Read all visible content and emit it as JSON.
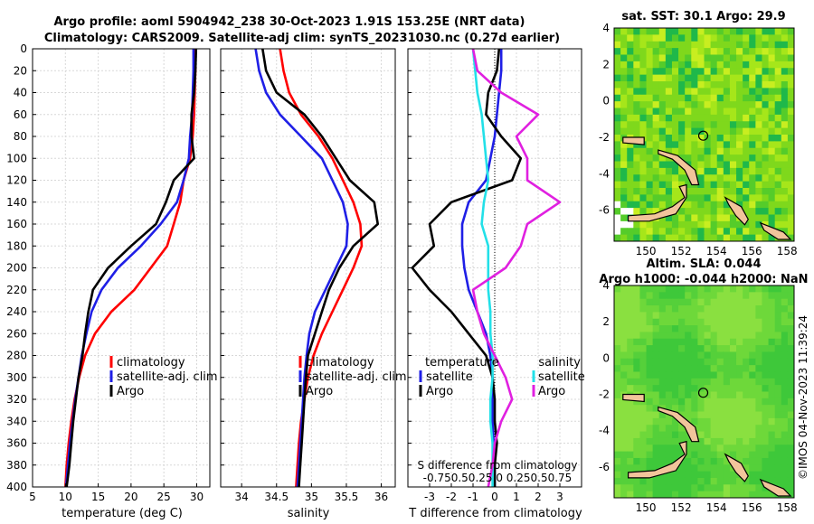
{
  "header": {
    "title_line1": "Argo profile: aoml 5904942_238 30-Oct-2023 1.91S 153.25E (NRT data)",
    "title_line2": "Climatology: CARS2009. Satellite-adj clim: synTS_20231030.nc (0.27d earlier)"
  },
  "colors": {
    "climatology": "#ff0000",
    "satellite": "#1f1fe6",
    "argo": "#000000",
    "sat_salinity": "#22e0e8",
    "argo_salinity": "#e020e0",
    "land": "#f2c49b"
  },
  "depth_ticks": [
    "0",
    "20",
    "40",
    "60",
    "80",
    "100",
    "120",
    "140",
    "160",
    "180",
    "200",
    "220",
    "240",
    "260",
    "280",
    "300",
    "320",
    "340",
    "360",
    "380",
    "400"
  ],
  "chart_data": [
    {
      "type": "line",
      "panel": "temperature",
      "xlabel": "temperature (deg C)",
      "ylabel": "depth",
      "xlim": [
        5,
        32
      ],
      "ylim": [
        400,
        0
      ],
      "y_inverted": true,
      "xticks": [
        "5",
        "10",
        "15",
        "20",
        "25",
        "30"
      ],
      "grid": true,
      "legend": [
        "climatology",
        "satellite-adj. clim",
        "Argo"
      ],
      "series": [
        {
          "name": "climatology",
          "color": "#ff0000",
          "x": [
            29.8,
            29.8,
            29.7,
            29.6,
            29.4,
            29.0,
            28.0,
            27.5,
            26.5,
            25.5,
            23.0,
            20.5,
            17.0,
            14.5,
            13.0,
            12.1,
            11.4,
            10.9,
            10.5,
            10.2,
            10.0
          ],
          "y": [
            0,
            20,
            40,
            60,
            80,
            100,
            120,
            140,
            160,
            180,
            200,
            220,
            240,
            260,
            280,
            300,
            320,
            340,
            360,
            380,
            400
          ]
        },
        {
          "name": "satellite-adj. clim",
          "color": "#1f1fe6",
          "x": [
            29.5,
            29.5,
            29.4,
            29.3,
            29.0,
            28.8,
            28.0,
            27.0,
            24.5,
            21.5,
            18.0,
            15.5,
            14.0,
            13.2,
            12.5,
            12.0,
            11.5,
            11.1,
            10.7,
            10.4,
            10.1
          ],
          "y": [
            0,
            20,
            40,
            60,
            80,
            100,
            120,
            140,
            160,
            180,
            200,
            220,
            240,
            260,
            280,
            300,
            320,
            340,
            360,
            380,
            400
          ]
        },
        {
          "name": "Argo",
          "color": "#000000",
          "x": [
            29.9,
            29.8,
            29.6,
            29.2,
            29.2,
            29.6,
            26.5,
            25.3,
            23.8,
            20.0,
            16.5,
            14.2,
            13.5,
            13.0,
            12.6,
            12.0,
            11.6,
            11.2,
            10.9,
            10.6,
            10.2
          ],
          "y": [
            0,
            20,
            40,
            60,
            80,
            100,
            120,
            140,
            160,
            180,
            200,
            220,
            240,
            260,
            280,
            300,
            320,
            340,
            360,
            380,
            400
          ]
        }
      ]
    },
    {
      "type": "line",
      "panel": "salinity",
      "xlabel": "salinity",
      "xlim": [
        33.7,
        36.2
      ],
      "ylim": [
        400,
        0
      ],
      "y_inverted": true,
      "xticks": [
        "34",
        "34.5",
        "35",
        "35.5",
        "36"
      ],
      "grid": true,
      "legend": [
        "climatology",
        "satellite-adj. clim",
        "Argo"
      ],
      "series": [
        {
          "name": "climatology",
          "color": "#ff0000",
          "x": [
            34.55,
            34.6,
            34.68,
            34.85,
            35.1,
            35.3,
            35.45,
            35.6,
            35.7,
            35.72,
            35.6,
            35.45,
            35.3,
            35.15,
            35.03,
            34.95,
            34.9,
            34.85,
            34.82,
            34.8,
            34.78
          ],
          "y": [
            0,
            20,
            40,
            60,
            80,
            100,
            120,
            140,
            160,
            180,
            200,
            220,
            240,
            260,
            280,
            300,
            320,
            340,
            360,
            380,
            400
          ]
        },
        {
          "name": "satellite-adj. clim",
          "color": "#1f1fe6",
          "x": [
            34.2,
            34.25,
            34.35,
            34.55,
            34.85,
            35.15,
            35.3,
            35.45,
            35.52,
            35.5,
            35.35,
            35.2,
            35.05,
            34.97,
            34.93,
            34.9,
            34.88,
            34.86,
            34.84,
            34.82,
            34.8
          ],
          "y": [
            0,
            20,
            40,
            60,
            80,
            100,
            120,
            140,
            160,
            180,
            200,
            220,
            240,
            260,
            280,
            300,
            320,
            340,
            360,
            380,
            400
          ]
        },
        {
          "name": "Argo",
          "color": "#000000",
          "x": [
            34.3,
            34.35,
            34.5,
            34.9,
            35.15,
            35.35,
            35.55,
            35.9,
            35.95,
            35.6,
            35.4,
            35.25,
            35.15,
            35.05,
            34.95,
            34.92,
            34.9,
            34.88,
            34.86,
            34.84,
            34.82
          ],
          "y": [
            0,
            20,
            40,
            60,
            80,
            100,
            120,
            140,
            160,
            180,
            200,
            220,
            240,
            260,
            280,
            300,
            320,
            340,
            360,
            380,
            400
          ]
        }
      ]
    },
    {
      "type": "line",
      "panel": "difference",
      "xlabel": "T difference from climatology",
      "top_label": "S difference from climatology",
      "top_ticks": "-0.750.50.25 0  0.250.50.75",
      "xlim": [
        -4,
        4
      ],
      "ylim": [
        400,
        0
      ],
      "y_inverted": true,
      "xticks": [
        "-3",
        "-2",
        "-1",
        "0",
        "1",
        "2",
        "3"
      ],
      "grid": true,
      "legend_left_title": "temperature",
      "legend_right_title": "salinity",
      "legend_left": [
        "satellite",
        "Argo"
      ],
      "legend_right": [
        "satellite",
        "Argo"
      ],
      "series": [
        {
          "name": "T satellite",
          "color": "#1f1fe6",
          "x": [
            0.3,
            0.3,
            0.2,
            0.1,
            0.0,
            -0.2,
            -0.4,
            -1.2,
            -1.5,
            -1.5,
            -1.4,
            -1.2,
            -0.8,
            -0.4,
            -0.2,
            -0.1,
            -0.1,
            -0.1,
            -0.05,
            0.0,
            0.0
          ],
          "y": [
            0,
            20,
            40,
            60,
            80,
            100,
            120,
            140,
            160,
            180,
            200,
            220,
            240,
            260,
            280,
            300,
            320,
            340,
            360,
            380,
            400
          ]
        },
        {
          "name": "T Argo",
          "color": "#000000",
          "x": [
            0.2,
            0.1,
            -0.3,
            -0.4,
            0.3,
            1.2,
            0.8,
            -2.0,
            -3.0,
            -2.8,
            -3.8,
            -3.0,
            -2.0,
            -1.2,
            -0.4,
            -0.1,
            0.0,
            0.0,
            0.1,
            0.0,
            0.0
          ],
          "y": [
            0,
            20,
            40,
            60,
            80,
            100,
            120,
            140,
            160,
            180,
            200,
            220,
            240,
            260,
            280,
            300,
            320,
            340,
            360,
            380,
            400
          ]
        },
        {
          "name": "S satellite",
          "color": "#22e0e8",
          "x": [
            -1.0,
            -0.9,
            -0.8,
            -0.6,
            -0.5,
            -0.4,
            -0.3,
            -0.5,
            -0.6,
            -0.3,
            -0.3,
            -0.3,
            -0.2,
            -0.2,
            -0.1,
            -0.1,
            -0.2,
            -0.2,
            -0.1,
            -0.1,
            -0.1
          ],
          "y": [
            0,
            20,
            40,
            60,
            80,
            100,
            120,
            140,
            160,
            180,
            200,
            220,
            240,
            260,
            280,
            300,
            320,
            340,
            360,
            380,
            400
          ]
        },
        {
          "name": "S Argo",
          "color": "#e020e0",
          "x": [
            -1.0,
            -0.8,
            0.3,
            2.0,
            1.0,
            1.5,
            1.5,
            3.0,
            1.5,
            1.2,
            0.5,
            -1.0,
            -0.8,
            -0.5,
            0.0,
            0.5,
            0.8,
            0.3,
            0.0,
            -0.1,
            -0.3
          ],
          "y": [
            0,
            20,
            40,
            60,
            80,
            100,
            120,
            140,
            160,
            180,
            200,
            220,
            240,
            260,
            280,
            300,
            320,
            340,
            360,
            380,
            400
          ]
        }
      ]
    },
    {
      "type": "heatmap",
      "panel": "sst_map",
      "title": "sat. SST: 30.1 Argo: 29.9",
      "xlim": [
        148.2,
        158.4
      ],
      "ylim": [
        -7.7,
        4
      ],
      "xticks": [
        "150",
        "152",
        "154",
        "156",
        "158"
      ],
      "yticks": [
        "4",
        "2",
        "0",
        "-2",
        "-4",
        "-6"
      ],
      "marker": {
        "lon": 153.25,
        "lat": -1.91
      }
    },
    {
      "type": "heatmap",
      "panel": "sla_map",
      "title": "Altim. SLA: 0.044",
      "subtitle": "Argo h1000: -0.044 h2000: NaN",
      "xlim": [
        148.2,
        158.4
      ],
      "ylim": [
        -7.7,
        4
      ],
      "xticks": [
        "150",
        "152",
        "154",
        "156",
        "158"
      ],
      "yticks": [
        "4",
        "2",
        "0",
        "-2",
        "-4",
        "-6"
      ],
      "marker": {
        "lon": 153.25,
        "lat": -1.91
      }
    }
  ],
  "footer": {
    "timestamp": "©IMOS 04-Nov-2023 11:39:24"
  }
}
